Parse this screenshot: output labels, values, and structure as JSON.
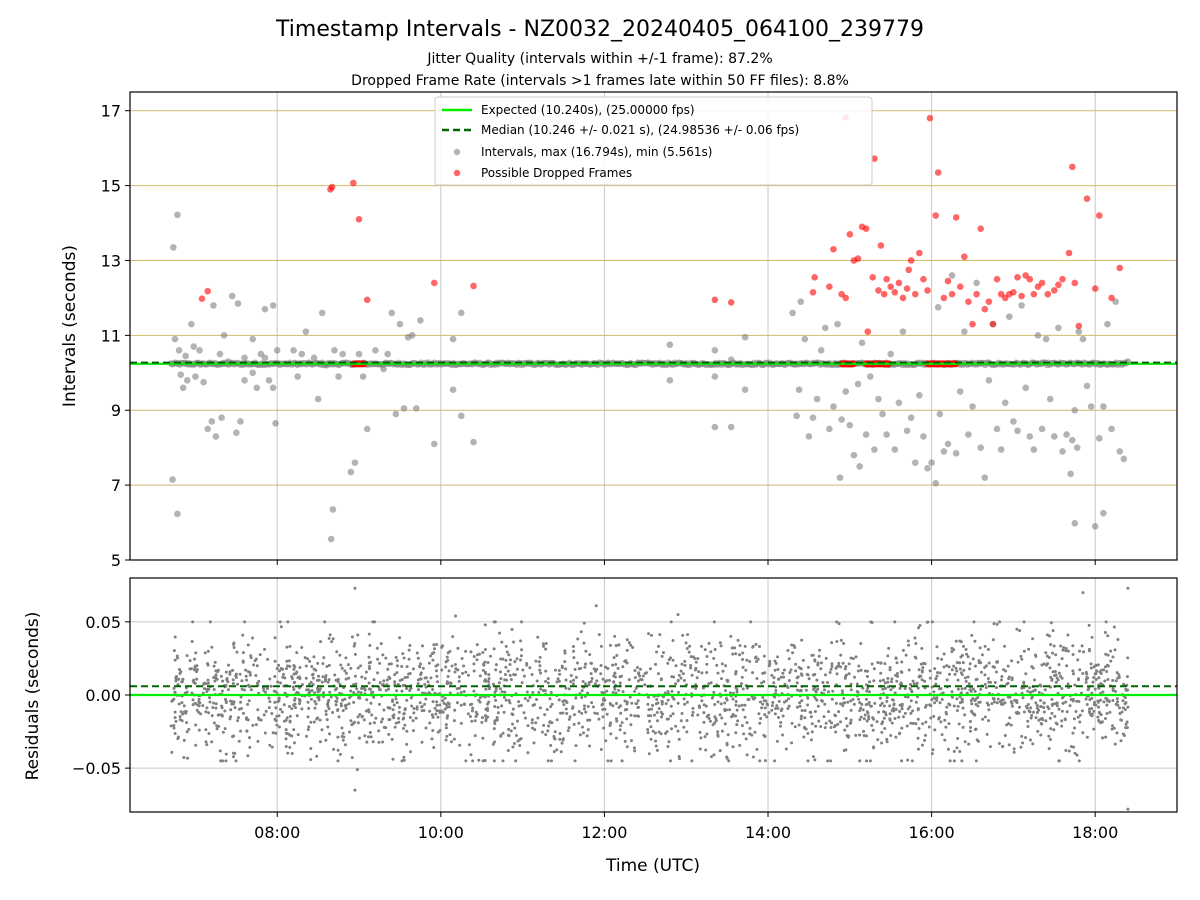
{
  "title": "Timestamp Intervals - NZ0032_20240405_064100_239779",
  "subtitle_line1": "Jitter Quality (intervals within +/-1 frame): 87.2%",
  "subtitle_line2": "Dropped Frame Rate (intervals >1 frames late within 50 FF files): 8.8%",
  "colors": {
    "expected": "#00ee00",
    "median": "#006400",
    "intervals": "#808080",
    "dropped": "#ff0000",
    "hgrid_top": "#d2b96e",
    "grid": "#c8c8c8"
  },
  "chart_data": [
    {
      "type": "scatter",
      "name": "intervals-panel",
      "ylabel": "Intervals (seconds)",
      "ylim": [
        5,
        17.5
      ],
      "yticks": [
        5,
        7,
        9,
        11,
        13,
        15,
        17
      ],
      "xlim_hours": [
        6.2,
        19.0
      ],
      "xticks": [
        8,
        10,
        12,
        14,
        16,
        18
      ],
      "legend": {
        "placement": "top-center",
        "entries": [
          "Expected (10.240s), (25.00000 fps)",
          "Median (10.246 +/- 0.021 s), (24.98536 +/- 0.06 fps)",
          "Intervals, max (16.794s), min (5.561s)",
          "Possible Dropped Frames"
        ]
      },
      "expected_line": 10.24,
      "median_line": 10.246,
      "dense_band": {
        "from_hour": 6.7,
        "to_hour": 18.4,
        "value": 10.24
      },
      "outliers": [
        [
          6.73,
          13.35
        ],
        [
          6.78,
          14.22
        ],
        [
          6.72,
          7.15
        ],
        [
          6.78,
          6.23
        ],
        [
          6.75,
          10.9
        ],
        [
          6.8,
          10.6
        ],
        [
          6.82,
          9.95
        ],
        [
          6.85,
          9.6
        ],
        [
          6.88,
          10.45
        ],
        [
          6.9,
          9.8
        ],
        [
          6.95,
          11.3
        ],
        [
          6.98,
          10.7
        ],
        [
          7.0,
          9.9
        ],
        [
          7.05,
          10.6
        ],
        [
          7.1,
          9.75
        ],
        [
          7.15,
          8.5
        ],
        [
          7.2,
          8.7
        ],
        [
          7.22,
          11.8
        ],
        [
          7.25,
          8.3
        ],
        [
          7.3,
          10.5
        ],
        [
          7.32,
          8.8
        ],
        [
          7.35,
          11.0
        ],
        [
          7.4,
          10.3
        ],
        [
          7.45,
          12.05
        ],
        [
          7.5,
          8.4
        ],
        [
          7.52,
          11.85
        ],
        [
          7.55,
          8.7
        ],
        [
          7.6,
          10.4
        ],
        [
          7.7,
          10.0
        ],
        [
          7.75,
          9.6
        ],
        [
          7.8,
          10.5
        ],
        [
          7.85,
          11.7
        ],
        [
          7.9,
          9.8
        ],
        [
          7.95,
          11.8
        ],
        [
          7.98,
          8.65
        ],
        [
          8.0,
          10.6
        ],
        [
          7.95,
          9.6
        ],
        [
          7.85,
          10.4
        ],
        [
          7.7,
          10.9
        ],
        [
          7.6,
          9.8
        ],
        [
          8.2,
          10.6
        ],
        [
          8.25,
          9.9
        ],
        [
          8.3,
          10.5
        ],
        [
          8.35,
          11.1
        ],
        [
          8.45,
          10.4
        ],
        [
          8.5,
          9.3
        ],
        [
          8.55,
          11.6
        ],
        [
          8.6,
          10.2
        ],
        [
          8.68,
          6.35
        ],
        [
          8.66,
          5.56
        ],
        [
          8.7,
          10.6
        ],
        [
          8.75,
          9.9
        ],
        [
          8.8,
          10.5
        ],
        [
          8.9,
          7.35
        ],
        [
          8.95,
          7.6
        ],
        [
          9.0,
          10.5
        ],
        [
          9.05,
          9.9
        ],
        [
          9.1,
          8.5
        ],
        [
          9.2,
          10.6
        ],
        [
          9.3,
          10.1
        ],
        [
          9.35,
          10.5
        ],
        [
          9.4,
          11.6
        ],
        [
          9.45,
          8.9
        ],
        [
          9.5,
          11.3
        ],
        [
          9.55,
          9.05
        ],
        [
          9.6,
          10.95
        ],
        [
          9.65,
          11.0
        ],
        [
          9.7,
          9.05
        ],
        [
          9.75,
          11.4
        ],
        [
          9.92,
          8.1
        ],
        [
          10.15,
          10.9
        ],
        [
          10.15,
          9.55
        ],
        [
          10.25,
          11.6
        ],
        [
          10.25,
          8.85
        ],
        [
          10.4,
          8.15
        ],
        [
          12.8,
          10.75
        ],
        [
          12.8,
          9.8
        ],
        [
          13.35,
          10.6
        ],
        [
          13.35,
          9.9
        ],
        [
          13.35,
          8.55
        ],
        [
          13.55,
          10.35
        ],
        [
          13.55,
          8.55
        ],
        [
          13.72,
          9.55
        ],
        [
          13.72,
          10.95
        ],
        [
          14.3,
          11.6
        ],
        [
          14.35,
          8.85
        ],
        [
          14.38,
          9.55
        ],
        [
          14.4,
          11.9
        ],
        [
          14.45,
          10.9
        ],
        [
          14.5,
          8.3
        ],
        [
          14.55,
          8.8
        ],
        [
          14.6,
          9.3
        ],
        [
          14.65,
          10.6
        ],
        [
          14.7,
          11.2
        ],
        [
          14.75,
          8.5
        ],
        [
          14.8,
          9.1
        ],
        [
          14.85,
          11.3
        ],
        [
          14.88,
          7.2
        ],
        [
          14.9,
          8.75
        ],
        [
          14.95,
          9.5
        ],
        [
          15.0,
          8.6
        ],
        [
          15.05,
          7.8
        ],
        [
          15.1,
          9.7
        ],
        [
          15.12,
          7.5
        ],
        [
          15.15,
          10.8
        ],
        [
          15.2,
          8.35
        ],
        [
          15.25,
          9.9
        ],
        [
          15.3,
          7.95
        ],
        [
          15.35,
          9.3
        ],
        [
          15.4,
          8.9
        ],
        [
          15.45,
          8.35
        ],
        [
          15.5,
          10.5
        ],
        [
          15.55,
          7.95
        ],
        [
          15.6,
          9.2
        ],
        [
          15.65,
          11.1
        ],
        [
          15.7,
          8.45
        ],
        [
          15.75,
          8.8
        ],
        [
          15.8,
          7.6
        ],
        [
          15.85,
          9.4
        ],
        [
          15.9,
          8.3
        ],
        [
          15.95,
          7.45
        ],
        [
          16.0,
          7.6
        ],
        [
          16.05,
          7.05
        ],
        [
          16.08,
          11.75
        ],
        [
          16.1,
          8.9
        ],
        [
          16.15,
          7.9
        ],
        [
          16.2,
          8.1
        ],
        [
          16.25,
          12.6
        ],
        [
          16.3,
          7.85
        ],
        [
          16.35,
          9.5
        ],
        [
          16.4,
          11.1
        ],
        [
          16.45,
          8.35
        ],
        [
          16.5,
          9.1
        ],
        [
          16.55,
          12.4
        ],
        [
          16.6,
          8.0
        ],
        [
          16.65,
          7.2
        ],
        [
          16.7,
          9.8
        ],
        [
          16.75,
          11.3
        ],
        [
          16.8,
          8.5
        ],
        [
          16.85,
          7.95
        ],
        [
          16.9,
          9.2
        ],
        [
          16.95,
          11.5
        ],
        [
          17.0,
          8.7
        ],
        [
          17.05,
          8.45
        ],
        [
          17.1,
          11.8
        ],
        [
          17.15,
          9.6
        ],
        [
          17.2,
          8.3
        ],
        [
          17.25,
          7.95
        ],
        [
          17.3,
          11.0
        ],
        [
          17.35,
          8.5
        ],
        [
          17.4,
          10.9
        ],
        [
          17.45,
          9.3
        ],
        [
          17.5,
          8.3
        ],
        [
          17.55,
          11.2
        ],
        [
          17.6,
          7.9
        ],
        [
          17.65,
          8.35
        ],
        [
          17.7,
          7.3
        ],
        [
          17.72,
          8.2
        ],
        [
          17.75,
          9.0
        ],
        [
          17.78,
          8.0
        ],
        [
          17.8,
          11.1
        ],
        [
          17.85,
          10.9
        ],
        [
          17.9,
          9.65
        ],
        [
          17.95,
          9.1
        ],
        [
          18.0,
          5.9
        ],
        [
          17.75,
          5.98
        ],
        [
          18.05,
          8.25
        ],
        [
          18.1,
          9.1
        ],
        [
          18.1,
          6.25
        ],
        [
          18.15,
          11.3
        ],
        [
          18.2,
          8.5
        ],
        [
          18.25,
          11.9
        ],
        [
          18.3,
          7.9
        ],
        [
          18.35,
          7.7
        ],
        [
          18.4,
          10.3
        ]
      ],
      "dropped_frames": [
        [
          7.08,
          11.98
        ],
        [
          7.15,
          12.18
        ],
        [
          8.65,
          14.9
        ],
        [
          8.67,
          14.96
        ],
        [
          8.93,
          15.07
        ],
        [
          9.0,
          14.1
        ],
        [
          9.1,
          11.95
        ],
        [
          9.92,
          12.4
        ],
        [
          10.4,
          12.32
        ],
        [
          13.35,
          11.95
        ],
        [
          13.55,
          11.88
        ],
        [
          14.55,
          12.15
        ],
        [
          14.57,
          12.55
        ],
        [
          14.75,
          12.3
        ],
        [
          14.8,
          13.3
        ],
        [
          14.9,
          12.1
        ],
        [
          14.95,
          12.0
        ],
        [
          15.0,
          13.7
        ],
        [
          15.05,
          13.0
        ],
        [
          15.1,
          13.05
        ],
        [
          15.15,
          13.9
        ],
        [
          15.2,
          13.85
        ],
        [
          15.22,
          11.1
        ],
        [
          15.28,
          12.55
        ],
        [
          15.3,
          15.72
        ],
        [
          15.35,
          12.2
        ],
        [
          15.38,
          13.4
        ],
        [
          15.42,
          12.1
        ],
        [
          15.45,
          12.5
        ],
        [
          15.5,
          12.3
        ],
        [
          15.55,
          12.15
        ],
        [
          15.6,
          12.4
        ],
        [
          15.65,
          12.0
        ],
        [
          15.7,
          12.25
        ],
        [
          15.72,
          12.75
        ],
        [
          15.75,
          13.0
        ],
        [
          15.8,
          12.1
        ],
        [
          15.85,
          13.2
        ],
        [
          15.9,
          12.5
        ],
        [
          15.95,
          12.2
        ],
        [
          15.98,
          16.8
        ],
        [
          16.05,
          14.2
        ],
        [
          16.08,
          15.35
        ],
        [
          16.15,
          12.0
        ],
        [
          16.2,
          12.45
        ],
        [
          16.25,
          12.1
        ],
        [
          16.3,
          14.15
        ],
        [
          16.35,
          12.3
        ],
        [
          16.4,
          13.1
        ],
        [
          16.45,
          11.9
        ],
        [
          16.5,
          11.3
        ],
        [
          16.55,
          12.1
        ],
        [
          16.6,
          13.85
        ],
        [
          16.65,
          11.7
        ],
        [
          16.7,
          11.9
        ],
        [
          16.75,
          11.3
        ],
        [
          16.8,
          12.5
        ],
        [
          16.85,
          12.1
        ],
        [
          16.9,
          12.0
        ],
        [
          16.95,
          12.1
        ],
        [
          17.0,
          12.15
        ],
        [
          17.05,
          12.55
        ],
        [
          17.1,
          12.05
        ],
        [
          17.15,
          12.6
        ],
        [
          17.2,
          12.5
        ],
        [
          17.25,
          12.1
        ],
        [
          17.3,
          12.3
        ],
        [
          17.35,
          12.4
        ],
        [
          17.42,
          12.1
        ],
        [
          17.5,
          12.2
        ],
        [
          17.55,
          12.35
        ],
        [
          17.6,
          12.5
        ],
        [
          17.68,
          13.2
        ],
        [
          17.72,
          15.5
        ],
        [
          17.75,
          12.4
        ],
        [
          17.8,
          11.25
        ],
        [
          17.9,
          14.65
        ],
        [
          18.0,
          12.25
        ],
        [
          18.05,
          14.2
        ],
        [
          18.2,
          12.0
        ],
        [
          18.3,
          12.8
        ]
      ],
      "dropped_cluster_segments": [
        [
          8.93,
          9.07
        ],
        [
          14.9,
          15.05
        ],
        [
          15.2,
          15.48
        ],
        [
          15.95,
          16.3
        ]
      ],
      "dropped_cluster_value": 10.24,
      "median_annotation_point": [
        14.95,
        16.82
      ]
    },
    {
      "type": "scatter",
      "name": "residuals-panel",
      "xlabel": "Time (UTC)",
      "ylabel": "Residuals (seconds)",
      "ylim": [
        -0.08,
        0.08
      ],
      "yticks": [
        -0.05,
        0.0,
        0.05
      ],
      "ytick_labels": [
        "−0.05",
        "0.00",
        "0.05"
      ],
      "xtick_labels": [
        "08:00",
        "10:00",
        "12:00",
        "14:00",
        "16:00",
        "18:00"
      ],
      "expected_line": 0.0,
      "median_line": 0.006,
      "residual_range": {
        "from_hour": 6.7,
        "to_hour": 18.4,
        "std": 0.021,
        "count": 2700
      },
      "residual_extremes": [
        [
          8.95,
          0.073
        ],
        [
          8.95,
          -0.065
        ],
        [
          8.98,
          -0.051
        ],
        [
          18.4,
          0.073
        ],
        [
          18.4,
          -0.078
        ],
        [
          17.85,
          0.07
        ],
        [
          10.18,
          0.054
        ],
        [
          11.9,
          0.061
        ],
        [
          12.9,
          0.055
        ]
      ]
    }
  ]
}
